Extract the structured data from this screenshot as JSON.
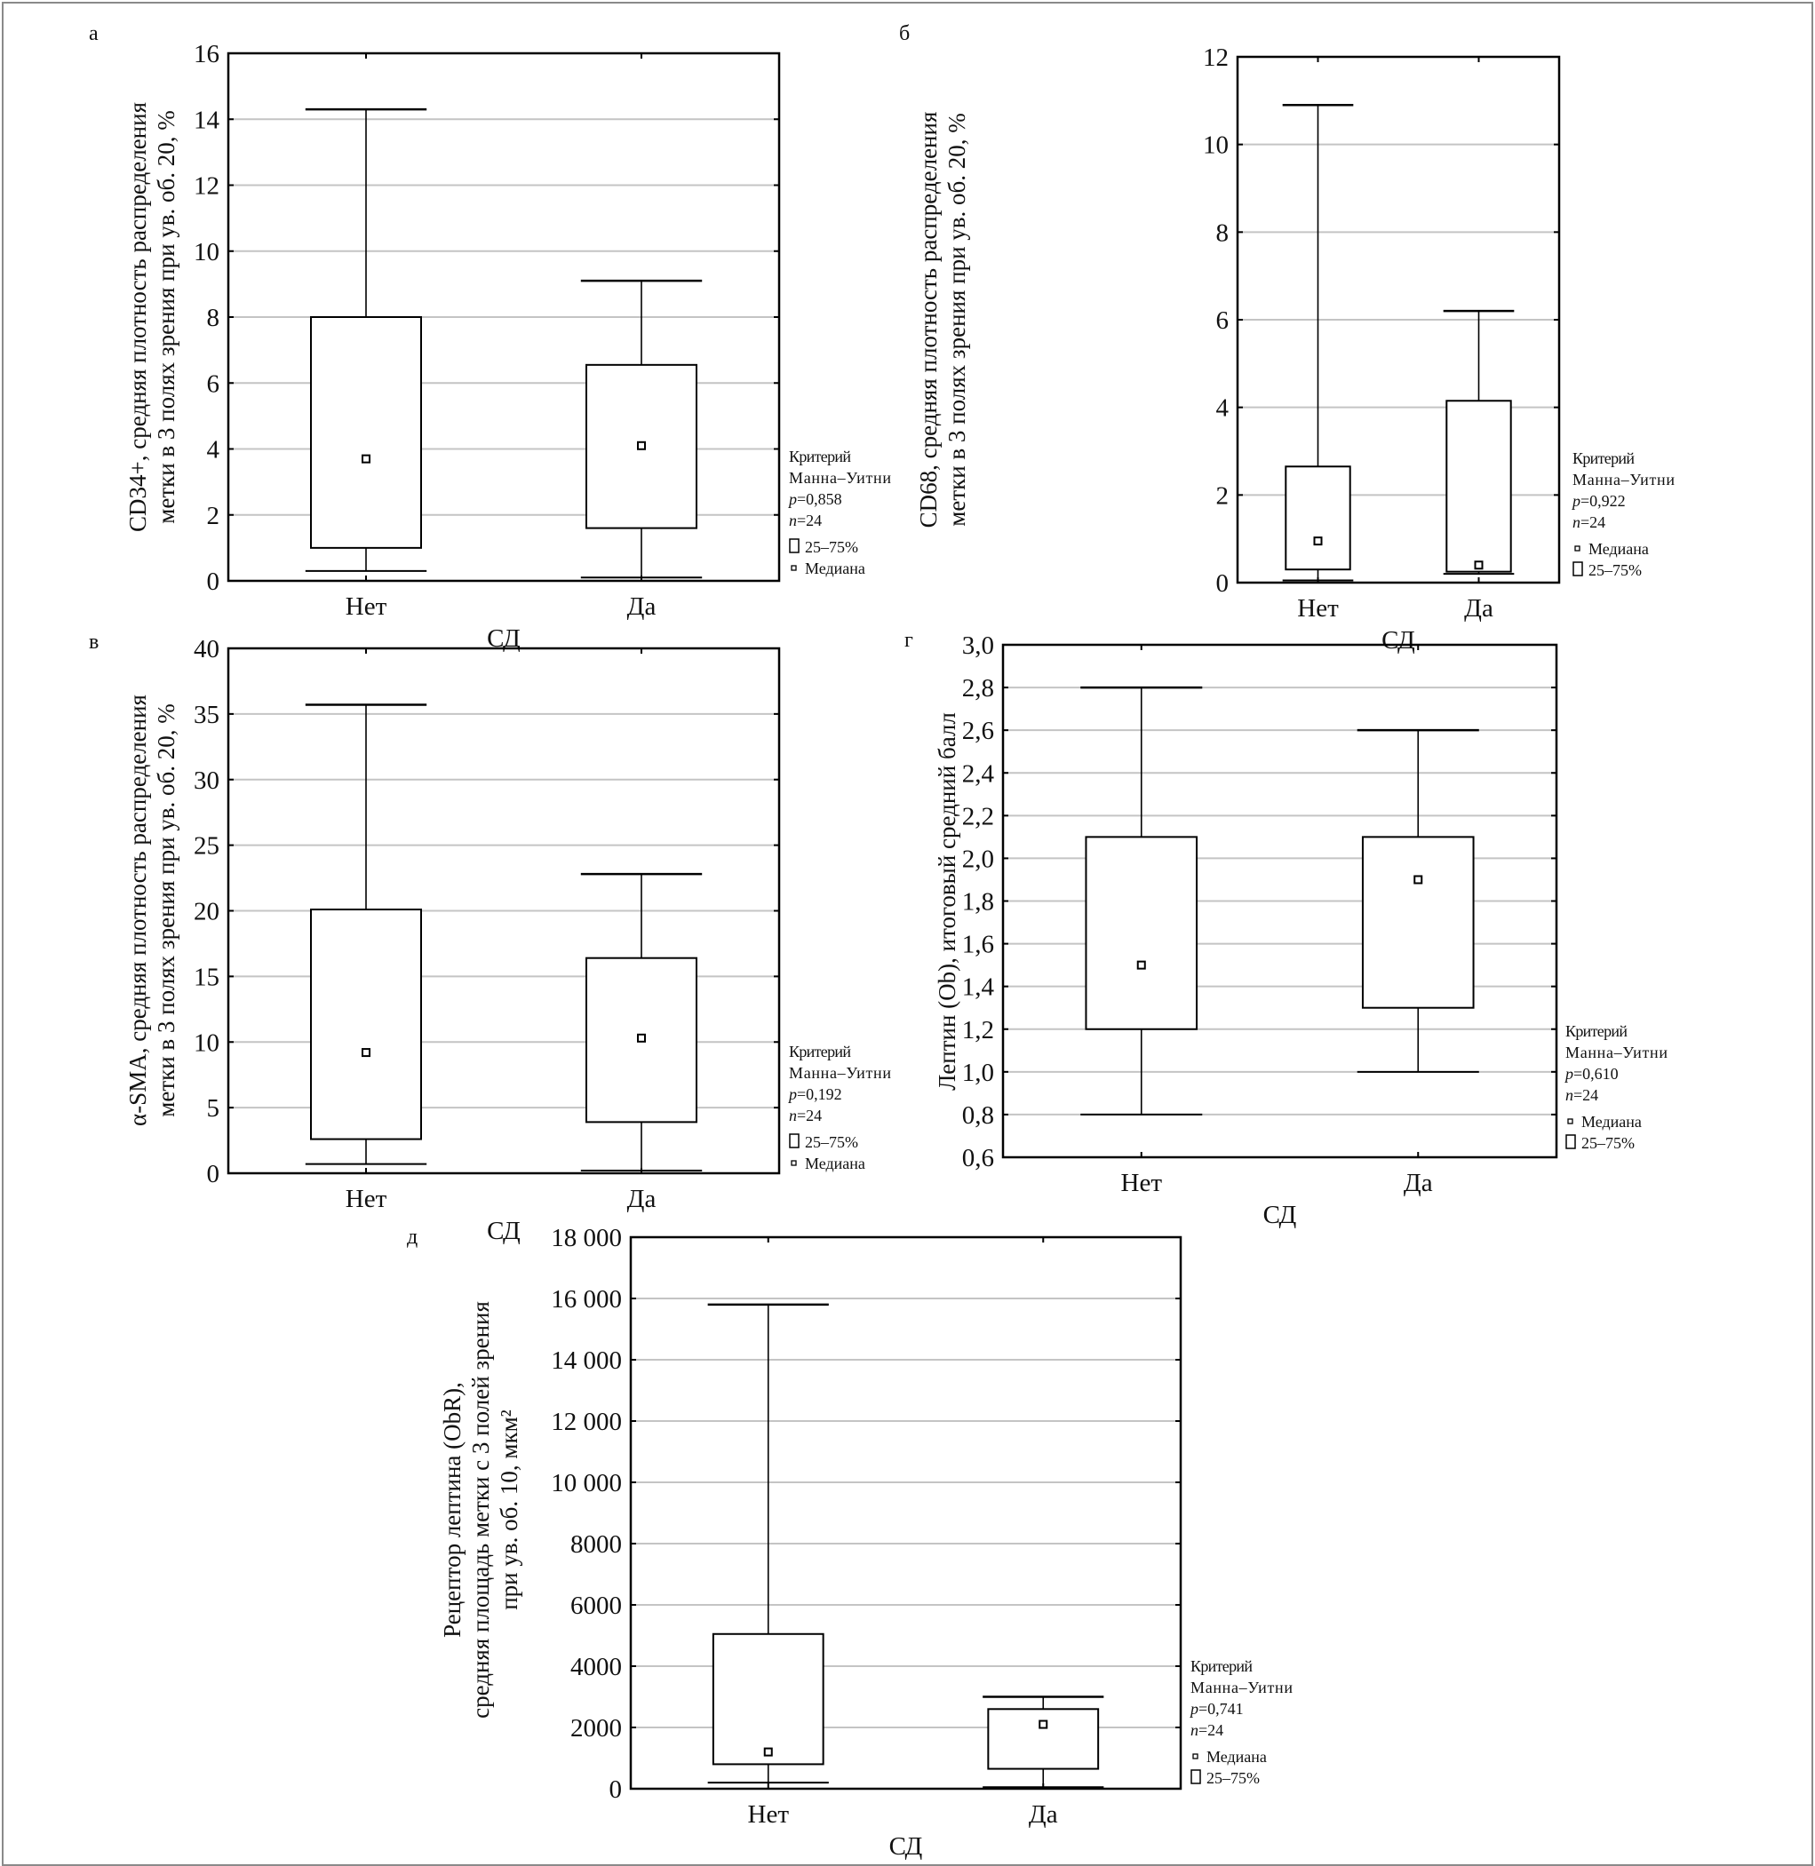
{
  "chart_data": [
    {
      "type": "box",
      "panel_label": "а",
      "ylabel": [
        "CD34+, средняя плотность распределения",
        "метки в 3 полях зрения при ув. об. 20, %"
      ],
      "xlabel": "СД",
      "categories": [
        "Нет",
        "Да"
      ],
      "ylim": [
        0,
        16
      ],
      "ystep": 2,
      "decimals": 0,
      "boxes": [
        {
          "min": 0.3,
          "q1": 1.0,
          "median": 3.7,
          "q3": 8.0,
          "max": 14.3
        },
        {
          "min": 0.1,
          "q1": 1.6,
          "median": 4.1,
          "q3": 6.55,
          "max": 9.1
        }
      ],
      "test": [
        "Критерий",
        "Манна–Уитни"
      ],
      "p": "0,858",
      "n": "24",
      "legend": [
        {
          "kind": "box",
          "label": "25–75%"
        },
        {
          "kind": "median",
          "label": "Медиана"
        }
      ]
    },
    {
      "type": "box",
      "panel_label": "б",
      "ylabel": [
        "CD68, средняя плотность распределения",
        "метки в 3 полях зрения при ув. об. 20, %"
      ],
      "xlabel": "СД",
      "categories": [
        "Нет",
        "Да"
      ],
      "ylim": [
        0,
        12
      ],
      "ystep": 2,
      "decimals": 0,
      "boxes": [
        {
          "min": 0.05,
          "q1": 0.3,
          "median": 0.95,
          "q3": 2.65,
          "max": 10.9
        },
        {
          "min": 0.2,
          "q1": 0.25,
          "median": 0.4,
          "q3": 4.15,
          "max": 6.2
        }
      ],
      "test": [
        "Критерий",
        "Манна–Уитни"
      ],
      "p": "0,922",
      "n": "24",
      "legend": [
        {
          "kind": "median",
          "label": "Медиана"
        },
        {
          "kind": "box",
          "label": "25–75%"
        }
      ]
    },
    {
      "type": "box",
      "panel_label": "в",
      "ylabel": [
        "α-SMA, средняя плотность распределения",
        "метки в 3 полях зрения при ув. об. 20, %"
      ],
      "xlabel": "СД",
      "categories": [
        "Нет",
        "Да"
      ],
      "ylim": [
        0,
        40
      ],
      "ystep": 5,
      "decimals": 0,
      "boxes": [
        {
          "min": 0.7,
          "q1": 2.6,
          "median": 9.2,
          "q3": 20.1,
          "max": 35.7
        },
        {
          "min": 0.2,
          "q1": 3.9,
          "median": 10.3,
          "q3": 16.4,
          "max": 22.8
        }
      ],
      "test": [
        "Критерий",
        "Манна–Уитни"
      ],
      "p": "0,192",
      "n": "24",
      "legend": [
        {
          "kind": "box",
          "label": "25–75%"
        },
        {
          "kind": "median",
          "label": "Медиана"
        }
      ]
    },
    {
      "type": "box",
      "panel_label": "г",
      "ylabel": [
        "Лептин (Ob), итоговый средний балл"
      ],
      "xlabel": "СД",
      "categories": [
        "Нет",
        "Да"
      ],
      "ylim": [
        0.6,
        3.0
      ],
      "ystep": 0.2,
      "decimals": 1,
      "boxes": [
        {
          "min": 0.8,
          "q1": 1.2,
          "median": 1.5,
          "q3": 2.1,
          "max": 2.8
        },
        {
          "min": 1.0,
          "q1": 1.3,
          "median": 1.9,
          "q3": 2.1,
          "max": 2.6
        }
      ],
      "test": [
        "Критерий",
        "Манна–Уитни"
      ],
      "p": "0,610",
      "n": "24",
      "legend": [
        {
          "kind": "median",
          "label": "Медиана"
        },
        {
          "kind": "box",
          "label": "25–75%"
        }
      ]
    },
    {
      "type": "box",
      "panel_label": "д",
      "ylabel": [
        "Рецептор лептина (ObR),",
        "средняя площадь метки с 3 полей зрения",
        "при ув. об. 10, мкм²"
      ],
      "xlabel": "СД",
      "categories": [
        "Нет",
        "Да"
      ],
      "ylim": [
        0,
        18000
      ],
      "ystep": 2000,
      "decimals": 0,
      "thousands_space": true,
      "boxes": [
        {
          "min": 200,
          "q1": 800,
          "median": 1200,
          "q3": 5050,
          "max": 15800
        },
        {
          "min": 50,
          "q1": 650,
          "median": 2100,
          "q3": 2600,
          "max": 3000
        }
      ],
      "test": [
        "Критерий",
        "Манна–Уитни"
      ],
      "p": "0,741",
      "n": "24",
      "legend": [
        {
          "kind": "median",
          "label": "Медиана"
        },
        {
          "kind": "box",
          "label": "25–75%"
        }
      ]
    }
  ]
}
